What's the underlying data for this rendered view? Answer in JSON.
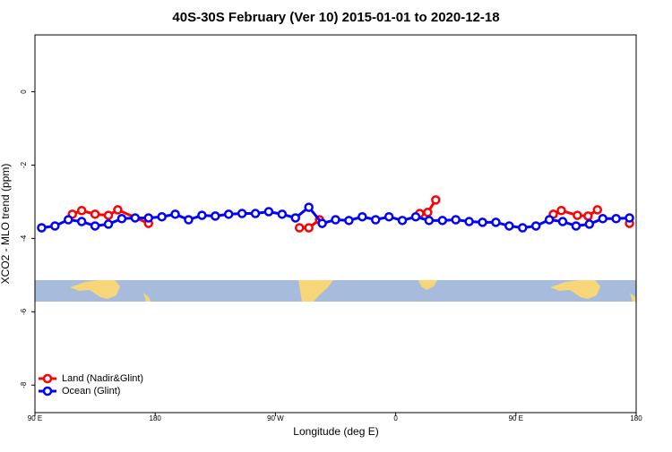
{
  "chart_data": {
    "type": "line",
    "title": "40S-30S February (Ver 10)   2015-01-01 to 2020-12-18",
    "x_label": "Longitude (deg E)",
    "y_label": "XCO2 - MLO trend (ppm)",
    "xlim": [
      90,
      540
    ],
    "xticks": [
      {
        "value": 90,
        "label": "90 E"
      },
      {
        "value": 180,
        "label": "180"
      },
      {
        "value": 270,
        "label": "90 W"
      },
      {
        "value": 360,
        "label": "0"
      },
      {
        "value": 450,
        "label": "90 E"
      },
      {
        "value": 540,
        "label": "180"
      }
    ],
    "ylim": [
      -8.75,
      1.55
    ],
    "yticks": [
      0,
      -2,
      -4,
      -6,
      -8
    ],
    "legend": "bottom-left",
    "series": [
      {
        "name": "Land (Nadir&Glint)",
        "color": "#ff0000",
        "x": [
          118,
          125,
          135,
          145,
          152,
          175,
          null,
          288,
          295,
          303,
          null,
          378,
          384,
          390,
          null,
          478,
          484,
          496,
          504,
          511,
          null,
          535
        ],
        "values": [
          -3.34,
          -3.24,
          -3.34,
          -3.37,
          -3.22,
          -3.59,
          null,
          -3.71,
          -3.71,
          -3.49,
          null,
          -3.32,
          -3.29,
          -2.95,
          null,
          -3.34,
          -3.24,
          -3.37,
          -3.39,
          -3.22,
          null,
          -3.59
        ]
      },
      {
        "name": "Ocean (Glint)",
        "color": "#0000ff",
        "x": [
          95,
          105,
          115,
          125,
          135,
          145,
          155,
          165,
          175,
          185,
          195,
          205,
          215,
          225,
          235,
          245,
          255,
          265,
          275,
          285,
          295,
          305,
          315,
          325,
          335,
          345,
          355,
          365,
          375,
          385,
          395,
          405,
          415,
          425,
          435,
          445,
          455,
          465,
          475,
          485,
          495,
          505,
          515,
          525,
          535
        ],
        "values": [
          -3.71,
          -3.66,
          -3.49,
          -3.54,
          -3.66,
          -3.61,
          -3.46,
          -3.44,
          -3.44,
          -3.41,
          -3.34,
          -3.49,
          -3.37,
          -3.39,
          -3.34,
          -3.32,
          -3.32,
          -3.27,
          -3.34,
          -3.44,
          -3.15,
          -3.59,
          -3.49,
          -3.51,
          -3.41,
          -3.49,
          -3.41,
          -3.51,
          -3.41,
          -3.51,
          -3.51,
          -3.49,
          -3.54,
          -3.56,
          -3.56,
          -3.66,
          -3.71,
          -3.66,
          -3.49,
          -3.54,
          -3.66,
          -3.61,
          -3.46,
          -3.46,
          -3.44
        ]
      }
    ]
  }
}
